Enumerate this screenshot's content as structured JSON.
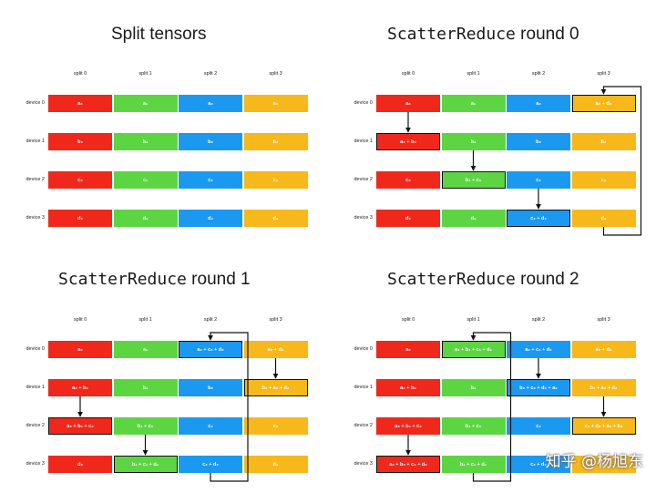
{
  "colors": {
    "split-0": "#f0281c",
    "split-1": "#5dd543",
    "split-2": "#1b99f0",
    "split-3": "#f7b81b"
  },
  "column_labels": [
    "split 0",
    "split 1",
    "split 2",
    "split 3"
  ],
  "row_labels": [
    "device 0",
    "device 1",
    "device 2",
    "device 3"
  ],
  "panels": [
    {
      "title_mono": "",
      "title_plain": "Split tensors",
      "cells": [
        [
          "a₀",
          "a₁",
          "a₂",
          "a₃"
        ],
        [
          "b₀",
          "b₁",
          "b₂",
          "b₃"
        ],
        [
          "c₀",
          "c₁",
          "c₂",
          "c₃"
        ],
        [
          "d₀",
          "d₁",
          "d₂",
          "d₃"
        ]
      ],
      "highlighted": [],
      "arrows": []
    },
    {
      "title_mono": "ScatterReduce",
      "title_plain": " round 0",
      "cells": [
        [
          "a₀",
          "a₁",
          "a₂",
          "a₃ + d₃"
        ],
        [
          "a₀ + b₀",
          "b₁",
          "b₂",
          "b₃"
        ],
        [
          "c₀",
          "b₁ + c₁",
          "c₂",
          "c₃"
        ],
        [
          "d₀",
          "d₁",
          "c₂ + d₂",
          "d₃"
        ]
      ],
      "highlighted": [
        [
          0,
          3
        ],
        [
          1,
          0
        ],
        [
          2,
          1
        ],
        [
          3,
          2
        ]
      ],
      "arrows": [
        {
          "col": 0,
          "from": 0,
          "to": 1
        },
        {
          "col": 1,
          "from": 1,
          "to": 2
        },
        {
          "col": 2,
          "from": 2,
          "to": 3
        },
        {
          "col": 3,
          "from": 3,
          "to": 0,
          "wrap": true
        }
      ]
    },
    {
      "title_mono": "ScatterReduce",
      "title_plain": " round 1",
      "cells": [
        [
          "a₀",
          "a₁",
          "a₂ + c₂ + d₂",
          "a₃ + d₃"
        ],
        [
          "a₀ + b₀",
          "b₁",
          "b₂",
          "b₃ + a₃ + d₃"
        ],
        [
          "a₀ + b₀ + c₀",
          "b₁ + c₁",
          "c₂",
          "c₃"
        ],
        [
          "d₀",
          "b₁ + c₁ + d₁",
          "c₂ + d₂",
          "d₃"
        ]
      ],
      "highlighted": [
        [
          0,
          2
        ],
        [
          1,
          3
        ],
        [
          2,
          0
        ],
        [
          3,
          1
        ]
      ],
      "arrows": [
        {
          "col": 0,
          "from": 1,
          "to": 2
        },
        {
          "col": 1,
          "from": 2,
          "to": 3
        },
        {
          "col": 2,
          "from": 3,
          "to": 0,
          "wrap": true
        },
        {
          "col": 3,
          "from": 0,
          "to": 1
        }
      ]
    },
    {
      "title_mono": "ScatterReduce",
      "title_plain": " round 2",
      "cells": [
        [
          "a₀",
          "a₁ + b₁ + c₁ + d₁",
          "a₂ + c₂ + d₂",
          "a₃ + d₃"
        ],
        [
          "a₀ + b₀",
          "b₁",
          "b₂ + c₂ + d₂ + a₂",
          "b₃ + a₃ + d₃"
        ],
        [
          "a₀ + b₀ + c₀",
          "b₁ + c₁",
          "c₂",
          "c₃ + d₃ + a₃ + b₃"
        ],
        [
          "a₀ + b₀ + c₀ + d₀",
          "b₁ + c₁ + d₁",
          "c₂ + d₂",
          "d₃"
        ]
      ],
      "highlighted": [
        [
          0,
          1
        ],
        [
          1,
          2
        ],
        [
          2,
          3
        ],
        [
          3,
          0
        ]
      ],
      "arrows": [
        {
          "col": 0,
          "from": 2,
          "to": 3
        },
        {
          "col": 1,
          "from": 3,
          "to": 0,
          "wrap": true
        },
        {
          "col": 2,
          "from": 0,
          "to": 1
        },
        {
          "col": 3,
          "from": 1,
          "to": 2
        }
      ]
    }
  ],
  "watermark": "知乎 @杨旭东"
}
